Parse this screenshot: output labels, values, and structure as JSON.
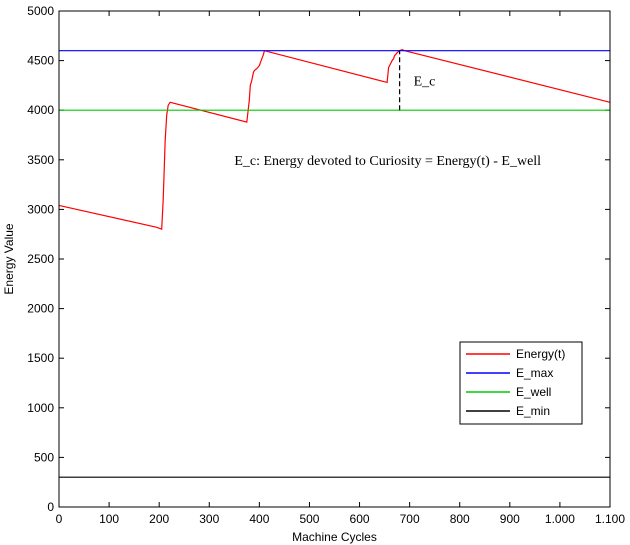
{
  "chart_data": {
    "type": "line",
    "xlabel": "Machine Cycles",
    "ylabel": "Energy Value",
    "xlim": [
      0,
      1100
    ],
    "ylim": [
      0,
      5000
    ],
    "x_ticks": [
      0,
      100,
      200,
      300,
      400,
      500,
      600,
      700,
      800,
      900,
      1000,
      1100
    ],
    "x_tick_labels": [
      "0",
      "100",
      "200",
      "300",
      "400",
      "500",
      "600",
      "700",
      "800",
      "900",
      "1.000",
      "1.100"
    ],
    "y_ticks": [
      0,
      500,
      1000,
      1500,
      2000,
      2500,
      3000,
      3500,
      4000,
      4500,
      5000
    ],
    "y_tick_labels": [
      "0",
      "500",
      "1000",
      "1500",
      "2000",
      "2500",
      "3000",
      "3500",
      "4000",
      "4500",
      "5000"
    ],
    "grid": false,
    "legend_position": "bottom-right",
    "series": [
      {
        "name": "Energy(t)",
        "color": "#ff0000",
        "x": [
          0,
          195,
          205,
          208,
          210,
          212,
          215,
          218,
          222,
          375,
          380,
          382,
          385,
          388,
          390,
          395,
          400,
          402,
          405,
          408,
          410,
          655,
          658,
          660,
          665,
          668,
          670,
          672,
          675,
          680,
          685,
          690,
          1100
        ],
        "y": [
          3040,
          2820,
          2800,
          3100,
          3400,
          3700,
          3950,
          4050,
          4080,
          3880,
          4100,
          4250,
          4300,
          4380,
          4400,
          4420,
          4450,
          4480,
          4520,
          4560,
          4600,
          4280,
          4430,
          4450,
          4500,
          4520,
          4550,
          4560,
          4580,
          4600,
          4610,
          4600,
          4080
        ]
      },
      {
        "name": "E_max",
        "color": "#0000ff",
        "x": [
          0,
          1100
        ],
        "y": [
          4600,
          4600
        ]
      },
      {
        "name": "E_well",
        "color": "#00cc00",
        "x": [
          0,
          1100
        ],
        "y": [
          4000,
          4000
        ]
      },
      {
        "name": "E_min",
        "color": "#000000",
        "x": [
          0,
          1100
        ],
        "y": [
          300,
          300
        ]
      }
    ],
    "annotations": {
      "ec_label": "E_c",
      "ec_marker": {
        "x": 680,
        "y_from": 4000,
        "y_to": 4600
      },
      "definition": "E_c: Energy devoted to Curiosity = Energy(t) - E_well"
    }
  }
}
